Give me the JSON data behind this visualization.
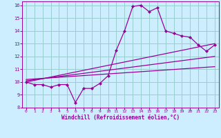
{
  "xlabel": "Windchill (Refroidissement éolien,°C)",
  "bg_color": "#cceeff",
  "grid_color": "#99cccc",
  "line_color": "#990099",
  "xlim": [
    -0.5,
    23.5
  ],
  "ylim": [
    8,
    16.3
  ],
  "xticks": [
    0,
    1,
    2,
    3,
    4,
    5,
    6,
    7,
    8,
    9,
    10,
    11,
    12,
    13,
    14,
    15,
    16,
    17,
    18,
    19,
    20,
    21,
    22,
    23
  ],
  "yticks": [
    8,
    9,
    10,
    11,
    12,
    13,
    14,
    15,
    16
  ],
  "line1_x": [
    0,
    1,
    2,
    3,
    4,
    5,
    6,
    7,
    8,
    9,
    10,
    11,
    12,
    13,
    14,
    15,
    16,
    17,
    18,
    19,
    20,
    21,
    22,
    23
  ],
  "line1_y": [
    10.0,
    9.8,
    9.8,
    9.6,
    9.8,
    9.8,
    8.4,
    9.5,
    9.5,
    9.9,
    10.5,
    12.5,
    14.0,
    15.9,
    16.0,
    15.5,
    15.8,
    14.0,
    13.8,
    13.6,
    13.5,
    12.9,
    12.4,
    12.9
  ],
  "line2_x": [
    0,
    23
  ],
  "line2_y": [
    10.0,
    13.0
  ],
  "line3_x": [
    0,
    23
  ],
  "line3_y": [
    10.1,
    12.0
  ],
  "line4_x": [
    0,
    23
  ],
  "line4_y": [
    10.2,
    11.2
  ]
}
